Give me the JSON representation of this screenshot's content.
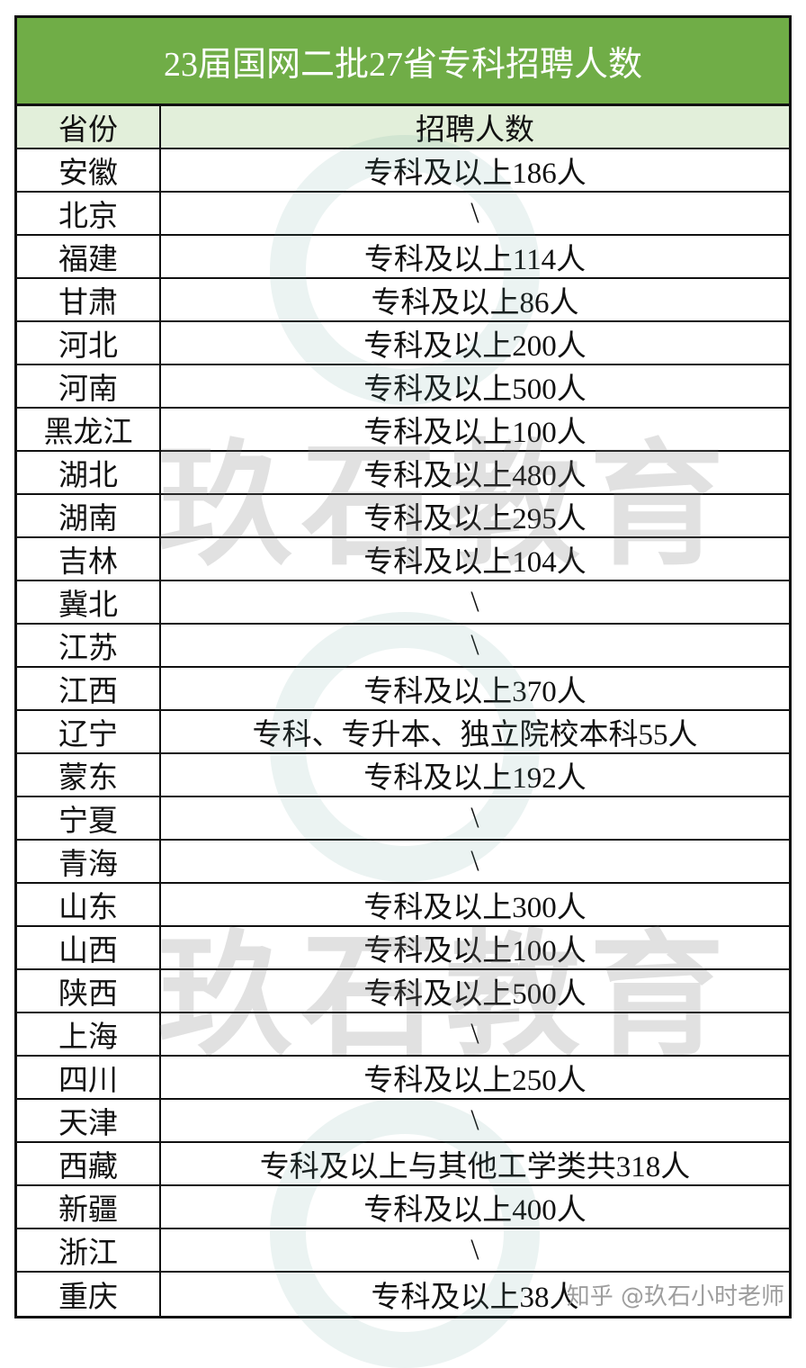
{
  "title": "23届国网二批27省专科招聘人数",
  "headers": {
    "province": "省份",
    "count": "招聘人数"
  },
  "rows": [
    {
      "province": "安徽",
      "count": "专科及以上186人"
    },
    {
      "province": "北京",
      "count": "\\"
    },
    {
      "province": "福建",
      "count": "专科及以上114人"
    },
    {
      "province": "甘肃",
      "count": "专科及以上86人"
    },
    {
      "province": "河北",
      "count": "专科及以上200人"
    },
    {
      "province": "河南",
      "count": "专科及以上500人"
    },
    {
      "province": "黑龙江",
      "count": "专科及以上100人"
    },
    {
      "province": "湖北",
      "count": "专科及以上480人"
    },
    {
      "province": "湖南",
      "count": "专科及以上295人"
    },
    {
      "province": "吉林",
      "count": "专科及以上104人"
    },
    {
      "province": "冀北",
      "count": "\\"
    },
    {
      "province": "江苏",
      "count": "\\"
    },
    {
      "province": "江西",
      "count": "专科及以上370人"
    },
    {
      "province": "辽宁",
      "count": "专科、专升本、独立院校本科55人"
    },
    {
      "province": "蒙东",
      "count": "专科及以上192人"
    },
    {
      "province": "宁夏",
      "count": "\\"
    },
    {
      "province": "青海",
      "count": "\\"
    },
    {
      "province": "山东",
      "count": "专科及以上300人"
    },
    {
      "province": "山西",
      "count": "专科及以上100人"
    },
    {
      "province": "陕西",
      "count": "专科及以上500人"
    },
    {
      "province": "上海",
      "count": "\\"
    },
    {
      "province": "四川",
      "count": "专科及以上250人"
    },
    {
      "province": "天津",
      "count": "\\"
    },
    {
      "province": "西藏",
      "count": "专科及以上与其他工学类共318人"
    },
    {
      "province": "新疆",
      "count": "专科及以上400人"
    },
    {
      "province": "浙江",
      "count": "\\"
    },
    {
      "province": "重庆",
      "count": "专科及以上38人"
    }
  ],
  "watermark": {
    "brand": "玖石教育",
    "attribution": "知乎 @玖石小时老师"
  },
  "colors": {
    "title_bg": "#70ad47",
    "header_bg": "#e2efda"
  }
}
